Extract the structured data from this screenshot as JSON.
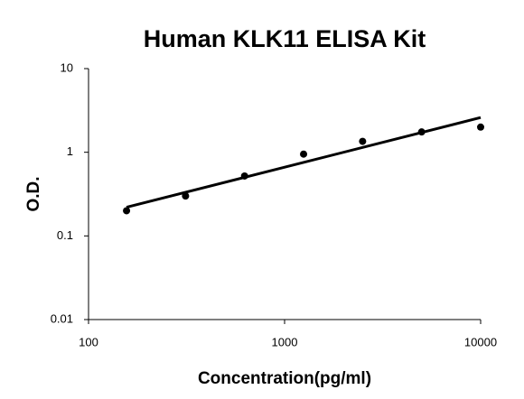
{
  "chart_data": {
    "type": "scatter",
    "title": "Human KLK11 ELISA Kit",
    "xlabel": "Concentration(pg/ml)",
    "ylabel": "O.D.",
    "x": [
      156.25,
      312.5,
      625,
      1250,
      2500,
      5000,
      10000
    ],
    "values": [
      0.2,
      0.3,
      0.52,
      0.95,
      1.35,
      1.75,
      2.0
    ],
    "color": "#000000",
    "trendline": {
      "x": [
        156.25,
        10000
      ],
      "values": [
        0.22,
        2.6
      ],
      "color": "#000000"
    },
    "xlog": true,
    "ylog": true,
    "xlim": [
      100,
      10000
    ],
    "ylim": [
      0.01,
      10
    ],
    "xticks": [
      100,
      1000,
      10000
    ],
    "yticks": [
      0.01,
      0.1,
      1,
      10
    ]
  }
}
